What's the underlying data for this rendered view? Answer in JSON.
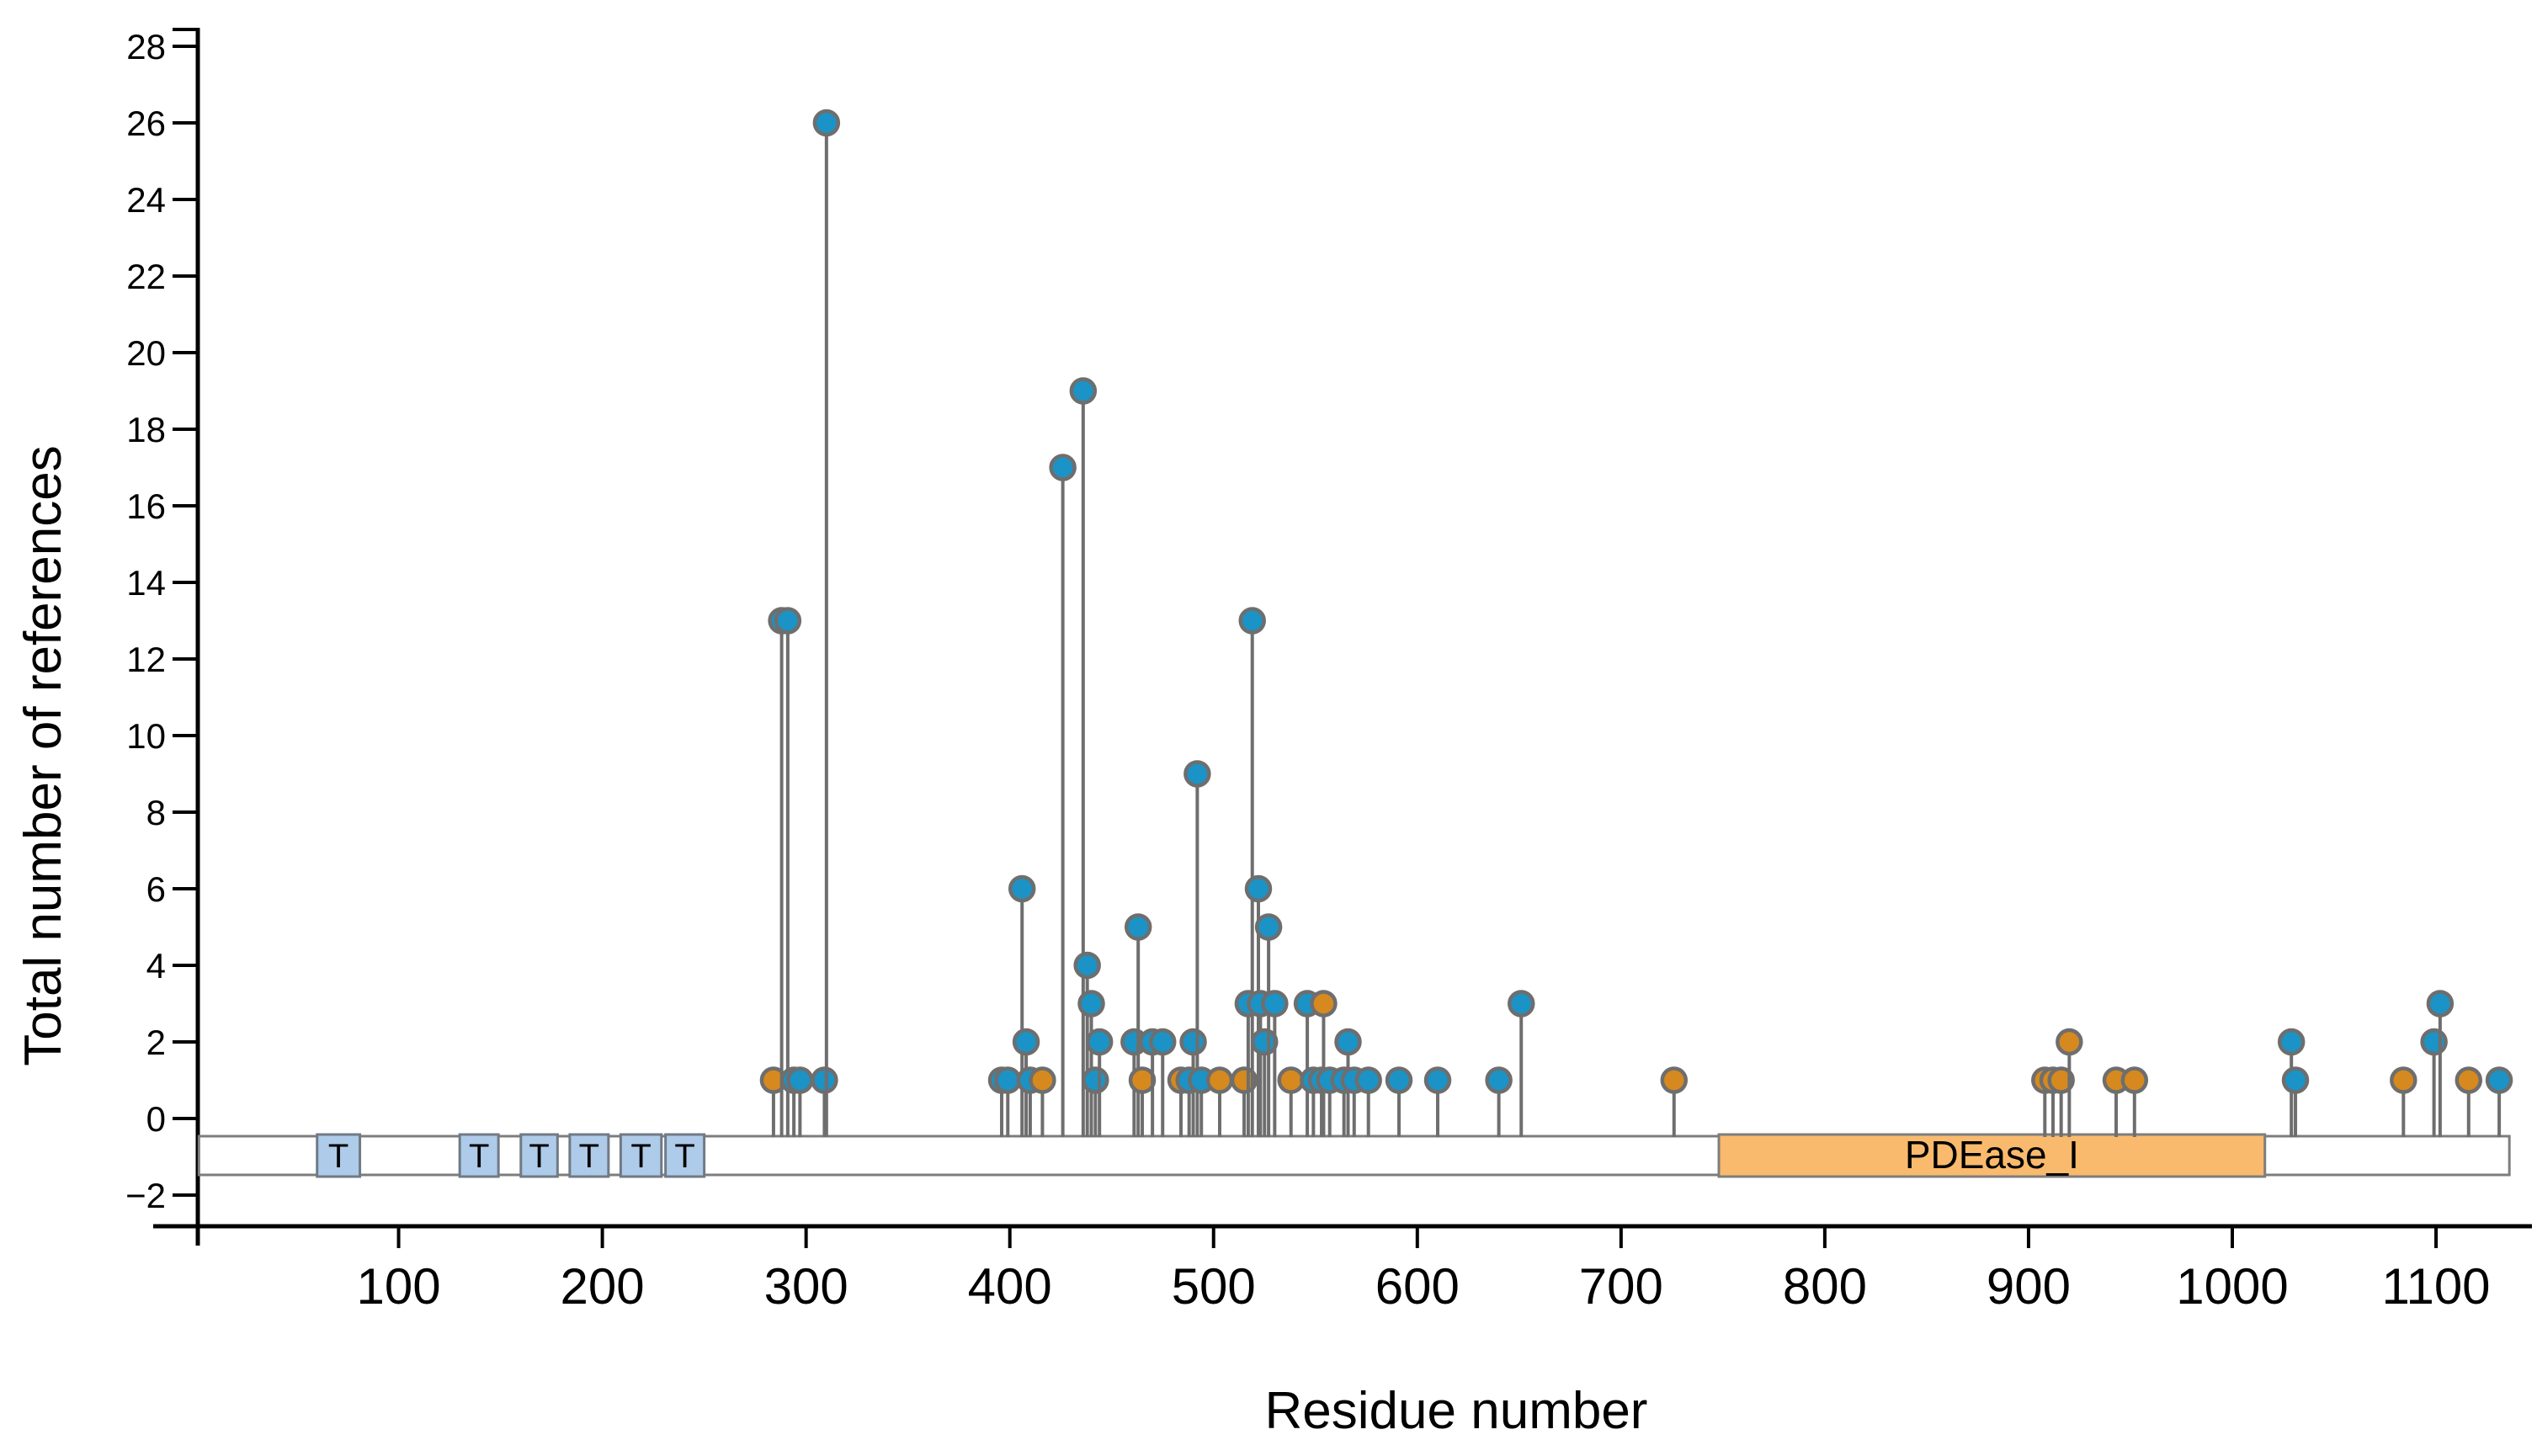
{
  "chart_data": {
    "type": "lollipop",
    "title": "",
    "xlabel": "Residue number",
    "ylabel": "Total number of references",
    "x_ticks": [
      100,
      200,
      300,
      400,
      500,
      600,
      700,
      800,
      900,
      1000,
      1100
    ],
    "y_ticks": [
      -2,
      0,
      2,
      4,
      6,
      8,
      10,
      12,
      14,
      16,
      18,
      20,
      22,
      24,
      26,
      28
    ],
    "xlim": [
      0,
      1148
    ],
    "ylim": [
      -2.8,
      28.6
    ],
    "grid": false,
    "legend": "none",
    "colors": {
      "blue_point": "#1b93c6",
      "orange_point": "#d6891f",
      "stem_gray": "#6e6e6e",
      "ring_gray": "#6e6e6e",
      "bar_fill": "#ffffff",
      "bar_border": "#7d7d7d",
      "t_box_fill": "#aecbe9",
      "t_box_border": "#707a85",
      "pdease_fill": "#f9ba6d",
      "axis_black": "#000000"
    },
    "protein_bar": {
      "start_residue": 2,
      "end_residue": 1136
    },
    "domains": [
      {
        "label": "T",
        "start": 60,
        "end": 81,
        "kind": "t"
      },
      {
        "label": "T",
        "start": 130,
        "end": 149,
        "kind": "t"
      },
      {
        "label": "T",
        "start": 160,
        "end": 178,
        "kind": "t"
      },
      {
        "label": "T",
        "start": 184,
        "end": 203,
        "kind": "t"
      },
      {
        "label": "T",
        "start": 209,
        "end": 229,
        "kind": "t"
      },
      {
        "label": "T",
        "start": 231,
        "end": 250,
        "kind": "t"
      },
      {
        "label": "PDEase_I",
        "start": 748,
        "end": 1016,
        "kind": "pdease"
      }
    ],
    "points": [
      {
        "x": 284,
        "y": 1,
        "c": "orange"
      },
      {
        "x": 288,
        "y": 13,
        "c": "blue"
      },
      {
        "x": 291,
        "y": 13,
        "c": "blue"
      },
      {
        "x": 294,
        "y": 1,
        "c": "blue"
      },
      {
        "x": 297,
        "y": 1,
        "c": "blue"
      },
      {
        "x": 309,
        "y": 1,
        "c": "blue"
      },
      {
        "x": 310,
        "y": 26,
        "c": "blue"
      },
      {
        "x": 396,
        "y": 1,
        "c": "blue"
      },
      {
        "x": 399,
        "y": 1,
        "c": "blue"
      },
      {
        "x": 406,
        "y": 6,
        "c": "blue"
      },
      {
        "x": 408,
        "y": 2,
        "c": "blue"
      },
      {
        "x": 410,
        "y": 1,
        "c": "blue"
      },
      {
        "x": 416,
        "y": 1,
        "c": "orange"
      },
      {
        "x": 426,
        "y": 17,
        "c": "blue"
      },
      {
        "x": 436,
        "y": 19,
        "c": "blue"
      },
      {
        "x": 438,
        "y": 4,
        "c": "blue"
      },
      {
        "x": 440,
        "y": 3,
        "c": "blue"
      },
      {
        "x": 442,
        "y": 1,
        "c": "blue"
      },
      {
        "x": 444,
        "y": 2,
        "c": "blue"
      },
      {
        "x": 461,
        "y": 2,
        "c": "blue"
      },
      {
        "x": 463,
        "y": 5,
        "c": "blue"
      },
      {
        "x": 465,
        "y": 1,
        "c": "orange"
      },
      {
        "x": 470,
        "y": 2,
        "c": "blue"
      },
      {
        "x": 475,
        "y": 2,
        "c": "blue"
      },
      {
        "x": 484,
        "y": 1,
        "c": "orange"
      },
      {
        "x": 488,
        "y": 1,
        "c": "blue"
      },
      {
        "x": 490,
        "y": 2,
        "c": "blue"
      },
      {
        "x": 492,
        "y": 9,
        "c": "blue"
      },
      {
        "x": 494,
        "y": 1,
        "c": "blue"
      },
      {
        "x": 503,
        "y": 1,
        "c": "orange"
      },
      {
        "x": 515,
        "y": 1,
        "c": "orange"
      },
      {
        "x": 517,
        "y": 3,
        "c": "blue"
      },
      {
        "x": 519,
        "y": 13,
        "c": "blue"
      },
      {
        "x": 522,
        "y": 6,
        "c": "blue"
      },
      {
        "x": 523,
        "y": 3,
        "c": "blue"
      },
      {
        "x": 525,
        "y": 2,
        "c": "blue"
      },
      {
        "x": 527,
        "y": 5,
        "c": "blue"
      },
      {
        "x": 530,
        "y": 3,
        "c": "blue"
      },
      {
        "x": 538,
        "y": 1,
        "c": "orange"
      },
      {
        "x": 546,
        "y": 3,
        "c": "blue"
      },
      {
        "x": 549,
        "y": 1,
        "c": "blue"
      },
      {
        "x": 553,
        "y": 1,
        "c": "blue"
      },
      {
        "x": 554,
        "y": 3,
        "c": "orange"
      },
      {
        "x": 557,
        "y": 1,
        "c": "blue"
      },
      {
        "x": 564,
        "y": 1,
        "c": "blue"
      },
      {
        "x": 566,
        "y": 2,
        "c": "blue"
      },
      {
        "x": 569,
        "y": 1,
        "c": "blue"
      },
      {
        "x": 576,
        "y": 1,
        "c": "blue"
      },
      {
        "x": 591,
        "y": 1,
        "c": "blue"
      },
      {
        "x": 610,
        "y": 1,
        "c": "blue"
      },
      {
        "x": 640,
        "y": 1,
        "c": "blue"
      },
      {
        "x": 651,
        "y": 3,
        "c": "blue"
      },
      {
        "x": 726,
        "y": 1,
        "c": "orange"
      },
      {
        "x": 908,
        "y": 1,
        "c": "orange"
      },
      {
        "x": 912,
        "y": 1,
        "c": "orange"
      },
      {
        "x": 916,
        "y": 1,
        "c": "orange"
      },
      {
        "x": 920,
        "y": 2,
        "c": "orange"
      },
      {
        "x": 943,
        "y": 1,
        "c": "orange"
      },
      {
        "x": 952,
        "y": 1,
        "c": "orange"
      },
      {
        "x": 1029,
        "y": 2,
        "c": "blue"
      },
      {
        "x": 1031,
        "y": 1,
        "c": "blue"
      },
      {
        "x": 1084,
        "y": 1,
        "c": "orange"
      },
      {
        "x": 1099,
        "y": 2,
        "c": "blue"
      },
      {
        "x": 1102,
        "y": 3,
        "c": "blue"
      },
      {
        "x": 1116,
        "y": 1,
        "c": "orange"
      },
      {
        "x": 1131,
        "y": 1,
        "c": "blue"
      }
    ]
  }
}
